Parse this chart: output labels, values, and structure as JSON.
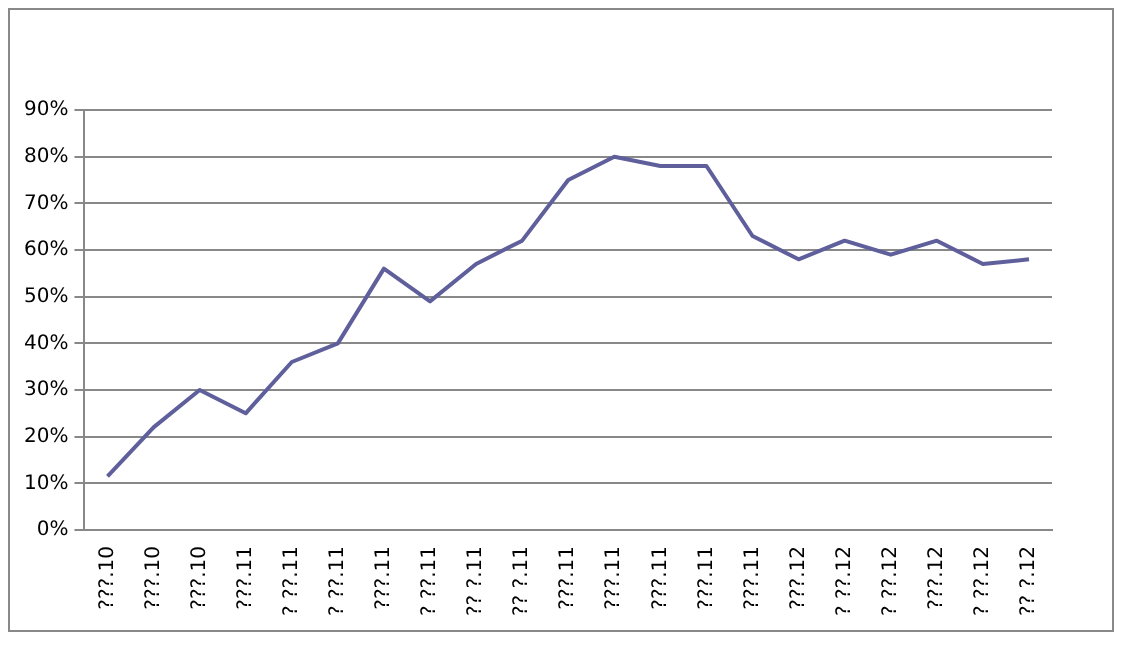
{
  "chart_data": {
    "type": "line",
    "categories": [
      "???.10",
      "???.10",
      "???.10",
      "???.11",
      "? ??.11",
      "? ??.11",
      "???.11",
      "? ??.11",
      "?? ?.11",
      "?? ?.11",
      "???.11",
      "???.11",
      "???.11",
      "???.11",
      "???.11",
      "???.12",
      "? ??.12",
      "? ??.12",
      "???.12",
      "? ??.12",
      "?? ?.12"
    ],
    "values": [
      11.5,
      22,
      30,
      25,
      36,
      40,
      56,
      49,
      57,
      62,
      75,
      80,
      78,
      78,
      63,
      58,
      62,
      59,
      62,
      57,
      58
    ],
    "color": "#5f5f9c",
    "ylim": [
      0,
      90
    ],
    "yticks": [
      {
        "value": 0,
        "label": "0%"
      },
      {
        "value": 10,
        "label": "10%"
      },
      {
        "value": 20,
        "label": "20%"
      },
      {
        "value": 30,
        "label": "30%"
      },
      {
        "value": 40,
        "label": "40%"
      },
      {
        "value": 50,
        "label": "50%"
      },
      {
        "value": 60,
        "label": "60%"
      },
      {
        "value": 70,
        "label": "70%"
      },
      {
        "value": 80,
        "label": "80%"
      },
      {
        "value": 90,
        "label": "90%"
      }
    ],
    "grid": "y",
    "marker": "none",
    "line_style": "solid",
    "legend": false
  }
}
